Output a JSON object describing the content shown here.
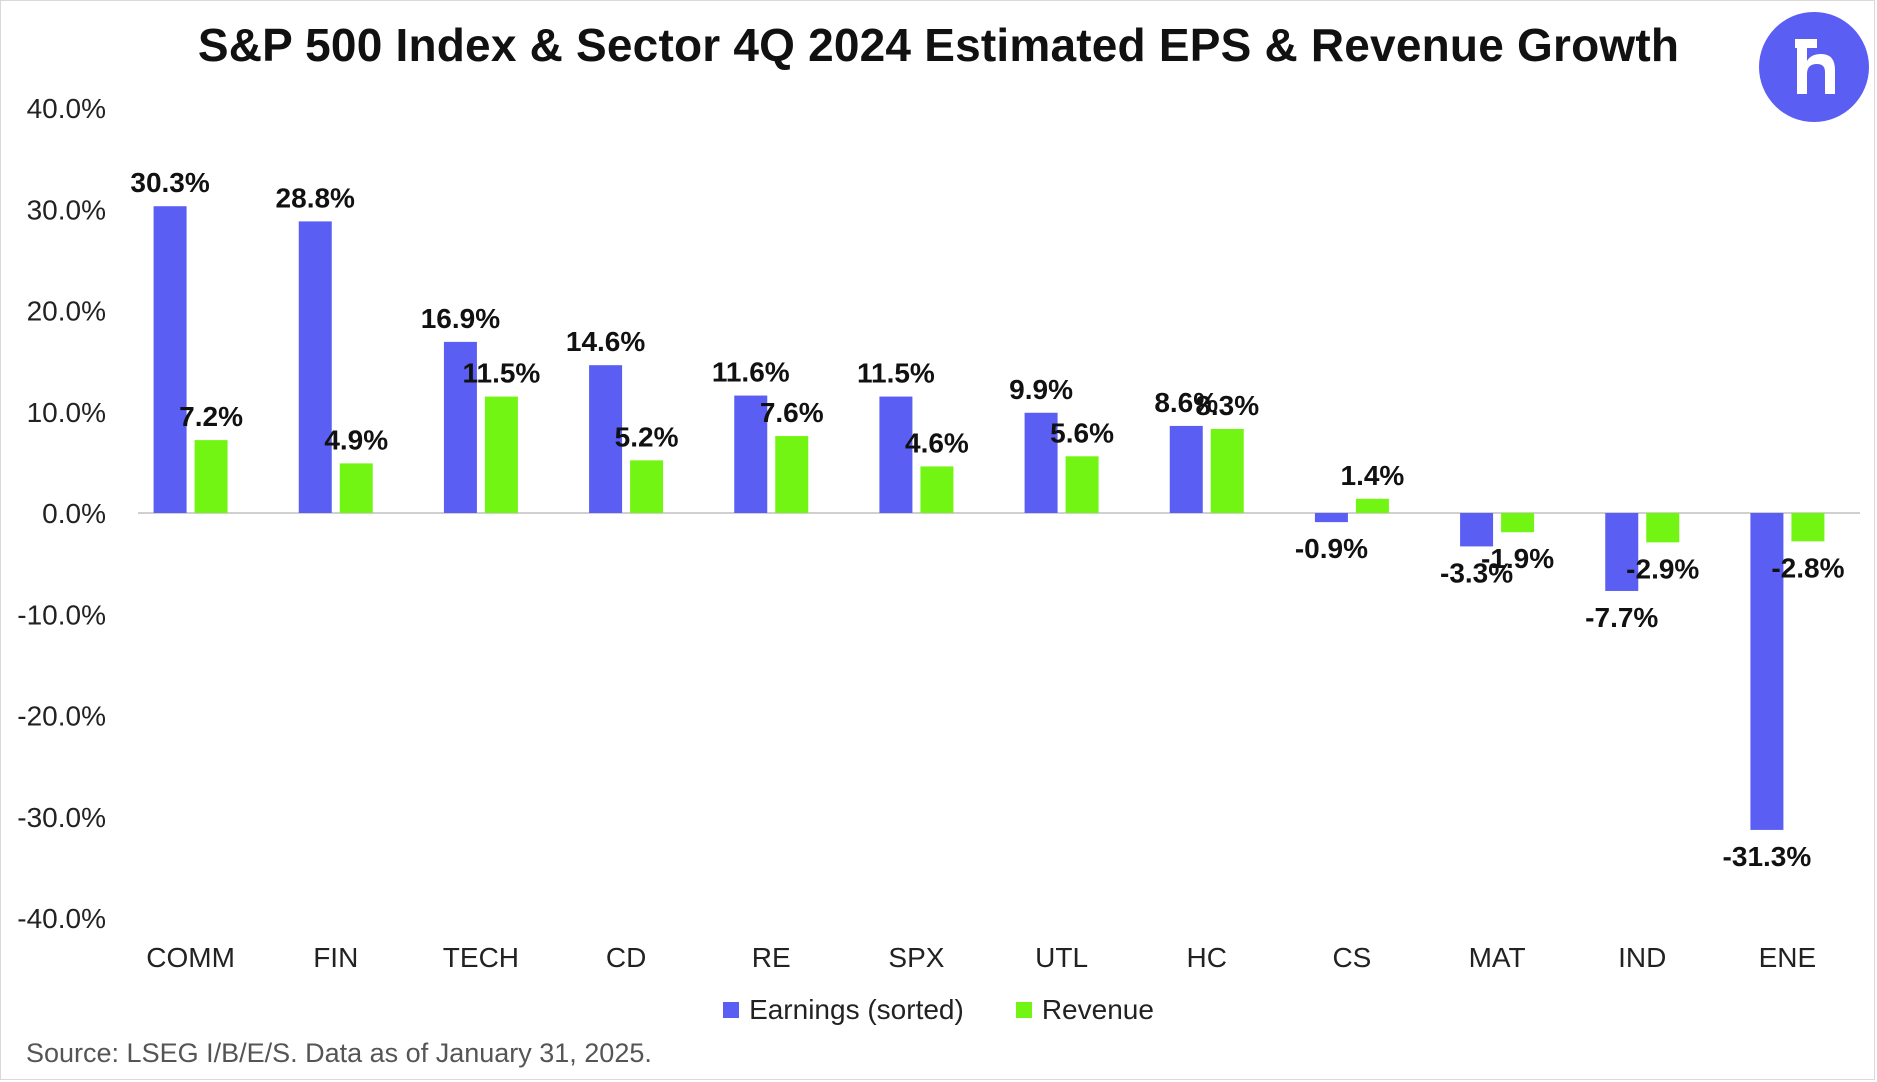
{
  "chart_data": {
    "type": "bar",
    "title": "S&P 500 Index & Sector 4Q 2024 Estimated EPS & Revenue Growth",
    "categories": [
      "COMM",
      "FIN",
      "TECH",
      "CD",
      "RE",
      "SPX",
      "UTL",
      "HC",
      "CS",
      "MAT",
      "IND",
      "ENE"
    ],
    "series": [
      {
        "name": "Earnings (sorted)",
        "color": "#5b5ef2",
        "values": [
          30.3,
          28.8,
          16.9,
          14.6,
          11.6,
          11.5,
          9.9,
          8.6,
          -0.9,
          -3.3,
          -7.7,
          -31.3
        ],
        "labels": [
          "30.3%",
          "28.8%",
          "16.9%",
          "14.6%",
          "11.6%",
          "11.5%",
          "9.9%",
          "8.6%",
          "-0.9%",
          "-3.3%",
          "-7.7%",
          "-31.3%"
        ]
      },
      {
        "name": "Revenue",
        "color": "#73f514",
        "values": [
          7.2,
          4.9,
          11.5,
          5.2,
          7.6,
          4.6,
          5.6,
          8.3,
          1.4,
          -1.9,
          -2.9,
          -2.8
        ],
        "labels": [
          "7.2%",
          "4.9%",
          "11.5%",
          "5.2%",
          "7.6%",
          "4.6%",
          "5.6%",
          "8.3%",
          "1.4%",
          "-1.9%",
          "-2.9%",
          "-2.8%"
        ]
      }
    ],
    "ylim": [
      -40,
      40
    ],
    "yticks": [
      "40.0%",
      "30.0%",
      "20.0%",
      "10.0%",
      "0.0%",
      "-10.0%",
      "-20.0%",
      "-30.0%",
      "-40.0%"
    ],
    "ytick_values": [
      40,
      30,
      20,
      10,
      0,
      -10,
      -20,
      -30,
      -40
    ],
    "grid": false,
    "legend_position": "bottom-center",
    "source": "Source: LSEG I/B/E/S. Data as of January 31, 2025."
  },
  "logo": {
    "icon": "r-brand-logo-icon",
    "color": "#5b5ef2"
  }
}
